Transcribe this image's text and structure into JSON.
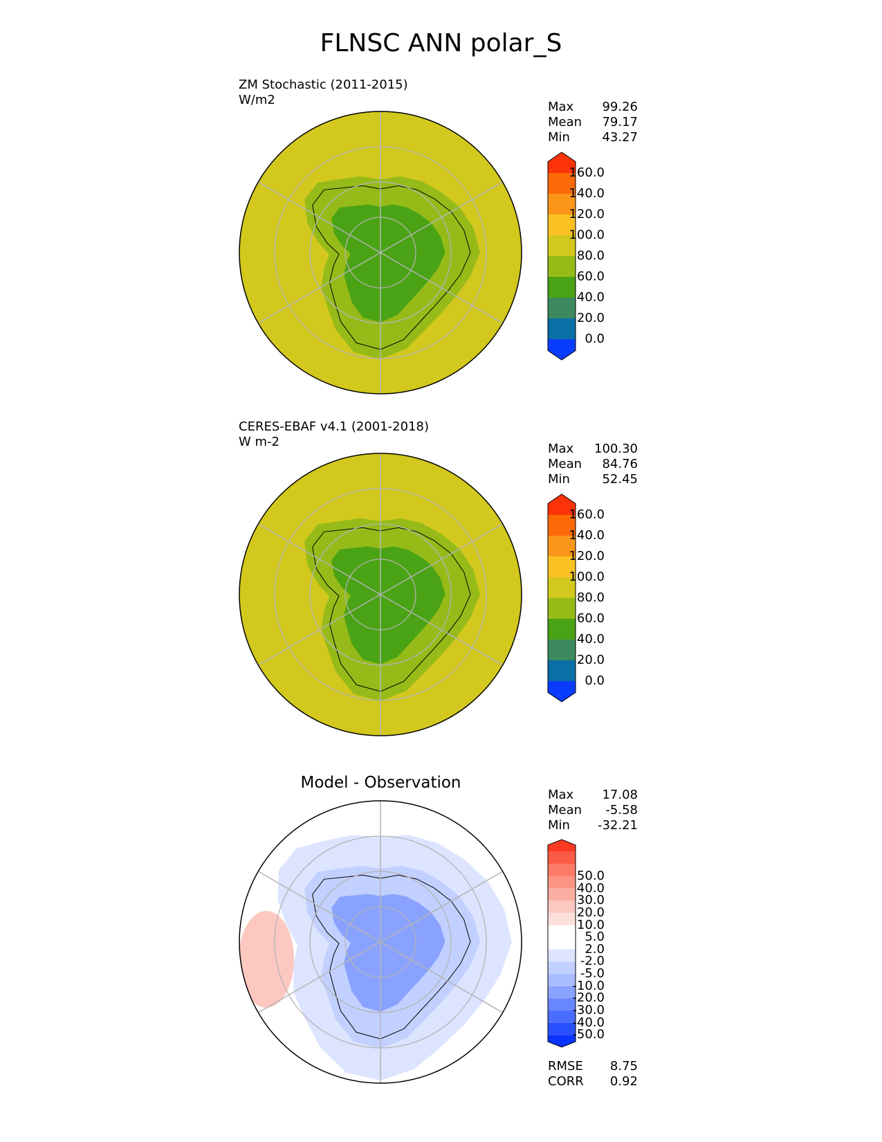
{
  "title": "FLNSC ANN polar_S",
  "panels": [
    {
      "id": "test",
      "title_line1": "ZM Stochastic (2011-2015)",
      "title_line2": "W/m2",
      "stats": [
        {
          "label": "Max",
          "value": "99.26"
        },
        {
          "label": "Mean",
          "value": "79.17"
        },
        {
          "label": "Min",
          "value": "43.27"
        }
      ],
      "colorbar": {
        "colors": [
          "#0a3cff",
          "#0b6ea4",
          "#3c8a5e",
          "#4aa314",
          "#96bb18",
          "#d2c81e",
          "#fcc224",
          "#fc961a",
          "#fc6a08",
          "#fc3208"
        ],
        "ticks": [
          "0.0",
          "20.0",
          "40.0",
          "60.0",
          "80.0",
          "100.0",
          "120.0",
          "140.0",
          "160.0"
        ]
      },
      "map_colors": {
        "ocean": "#d2c81e",
        "ring": "#96bb18",
        "core": "#4aa314"
      }
    },
    {
      "id": "reference",
      "title_line1": "CERES-EBAF v4.1 (2001-2018)",
      "title_line2": "W m-2",
      "stats": [
        {
          "label": "Max",
          "value": "100.30"
        },
        {
          "label": "Mean",
          "value": "84.76"
        },
        {
          "label": "Min",
          "value": "52.45"
        }
      ],
      "colorbar": {
        "colors": [
          "#0a3cff",
          "#0b6ea4",
          "#3c8a5e",
          "#4aa314",
          "#96bb18",
          "#d2c81e",
          "#fcc224",
          "#fc961a",
          "#fc6a08",
          "#fc3208"
        ],
        "ticks": [
          "0.0",
          "20.0",
          "40.0",
          "60.0",
          "80.0",
          "100.0",
          "120.0",
          "140.0",
          "160.0"
        ]
      },
      "map_colors": {
        "ocean": "#d2c81e",
        "ring": "#96bb18",
        "core": "#4aa314"
      }
    },
    {
      "id": "diff",
      "title": "Model - Observation",
      "stats": [
        {
          "label": "Max",
          "value": "17.08"
        },
        {
          "label": "Mean",
          "value": "-5.58"
        },
        {
          "label": "Min",
          "value": "-32.21"
        }
      ],
      "extra_stats": [
        {
          "label": "RMSE",
          "value": "8.75"
        },
        {
          "label": "CORR",
          "value": "0.92"
        }
      ],
      "colorbar": {
        "colors": [
          "#0a32ff",
          "#2850ff",
          "#4a6cff",
          "#6886ff",
          "#8aa2ff",
          "#a8bcff",
          "#c2d0ff",
          "#dce4ff",
          "#ffffff",
          "#ffffff",
          "#fde0dc",
          "#fcc8c0",
          "#fcaea2",
          "#fc9484",
          "#fc7a66",
          "#fc5a46",
          "#fc3a22"
        ],
        "ticks": [
          "-50.0",
          "-40.0",
          "-30.0",
          "-20.0",
          "-10.0",
          "-5.0",
          "-2.0",
          "2.0",
          "5.0",
          "10.0",
          "20.0",
          "30.0",
          "40.0",
          "50.0"
        ]
      },
      "map_colors": {
        "ocean": "#ffffff",
        "ring": "#c2d0ff",
        "core": "#8aa2ff",
        "pos": "#fcc8c0"
      }
    }
  ]
}
